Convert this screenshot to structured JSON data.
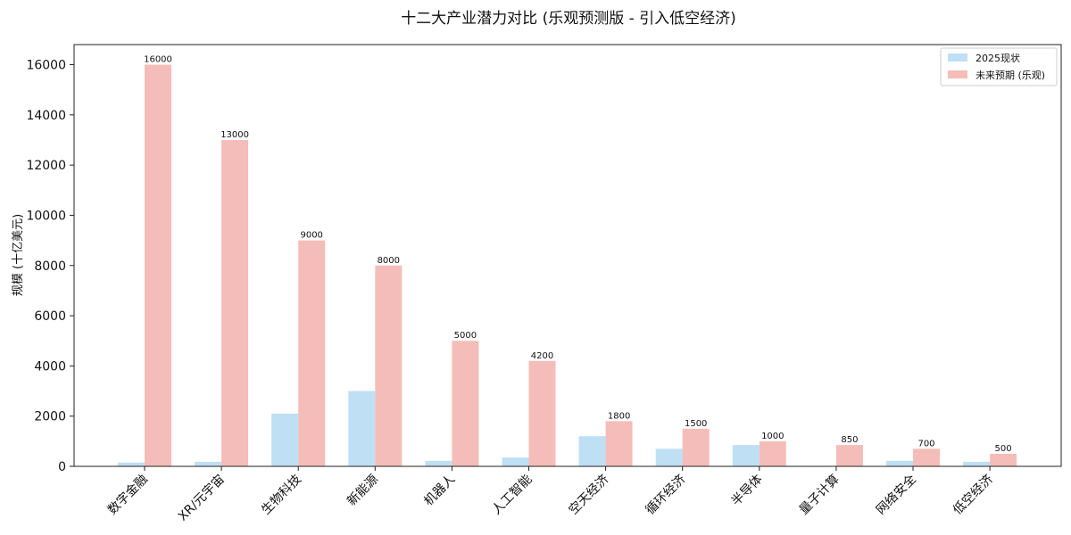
{
  "chart_data": {
    "type": "bar",
    "title": "十二大产业潜力对比 (乐观预测版 - 引入低空经济)",
    "xlabel": "",
    "ylabel": "规模 (十亿美元)",
    "ylim": [
      0,
      16800
    ],
    "yticks": [
      0,
      2000,
      4000,
      6000,
      8000,
      10000,
      12000,
      14000,
      16000
    ],
    "categories": [
      "数字金融",
      "XR/元宇宙",
      "生物科技",
      "新能源",
      "机器人",
      "人工智能",
      "空天经济",
      "循环经济",
      "半导体",
      "量子计算",
      "网络安全",
      "低空经济"
    ],
    "series": [
      {
        "name": "2025现状",
        "color": "#bfdff4",
        "values": [
          150,
          180,
          2100,
          3000,
          220,
          350,
          1200,
          700,
          850,
          5,
          220,
          180
        ]
      },
      {
        "name": "未来预期 (乐观)",
        "color": "#f5bdb9",
        "values": [
          16000,
          13000,
          9000,
          8000,
          5000,
          4200,
          1800,
          1500,
          1000,
          850,
          700,
          500
        ]
      }
    ],
    "data_labels": [
      "16000",
      "13000",
      "9000",
      "8000",
      "5000",
      "4200",
      "1800",
      "1500",
      "1000",
      "850",
      "700",
      "500"
    ],
    "legend_position": "top-right",
    "grid": false
  }
}
